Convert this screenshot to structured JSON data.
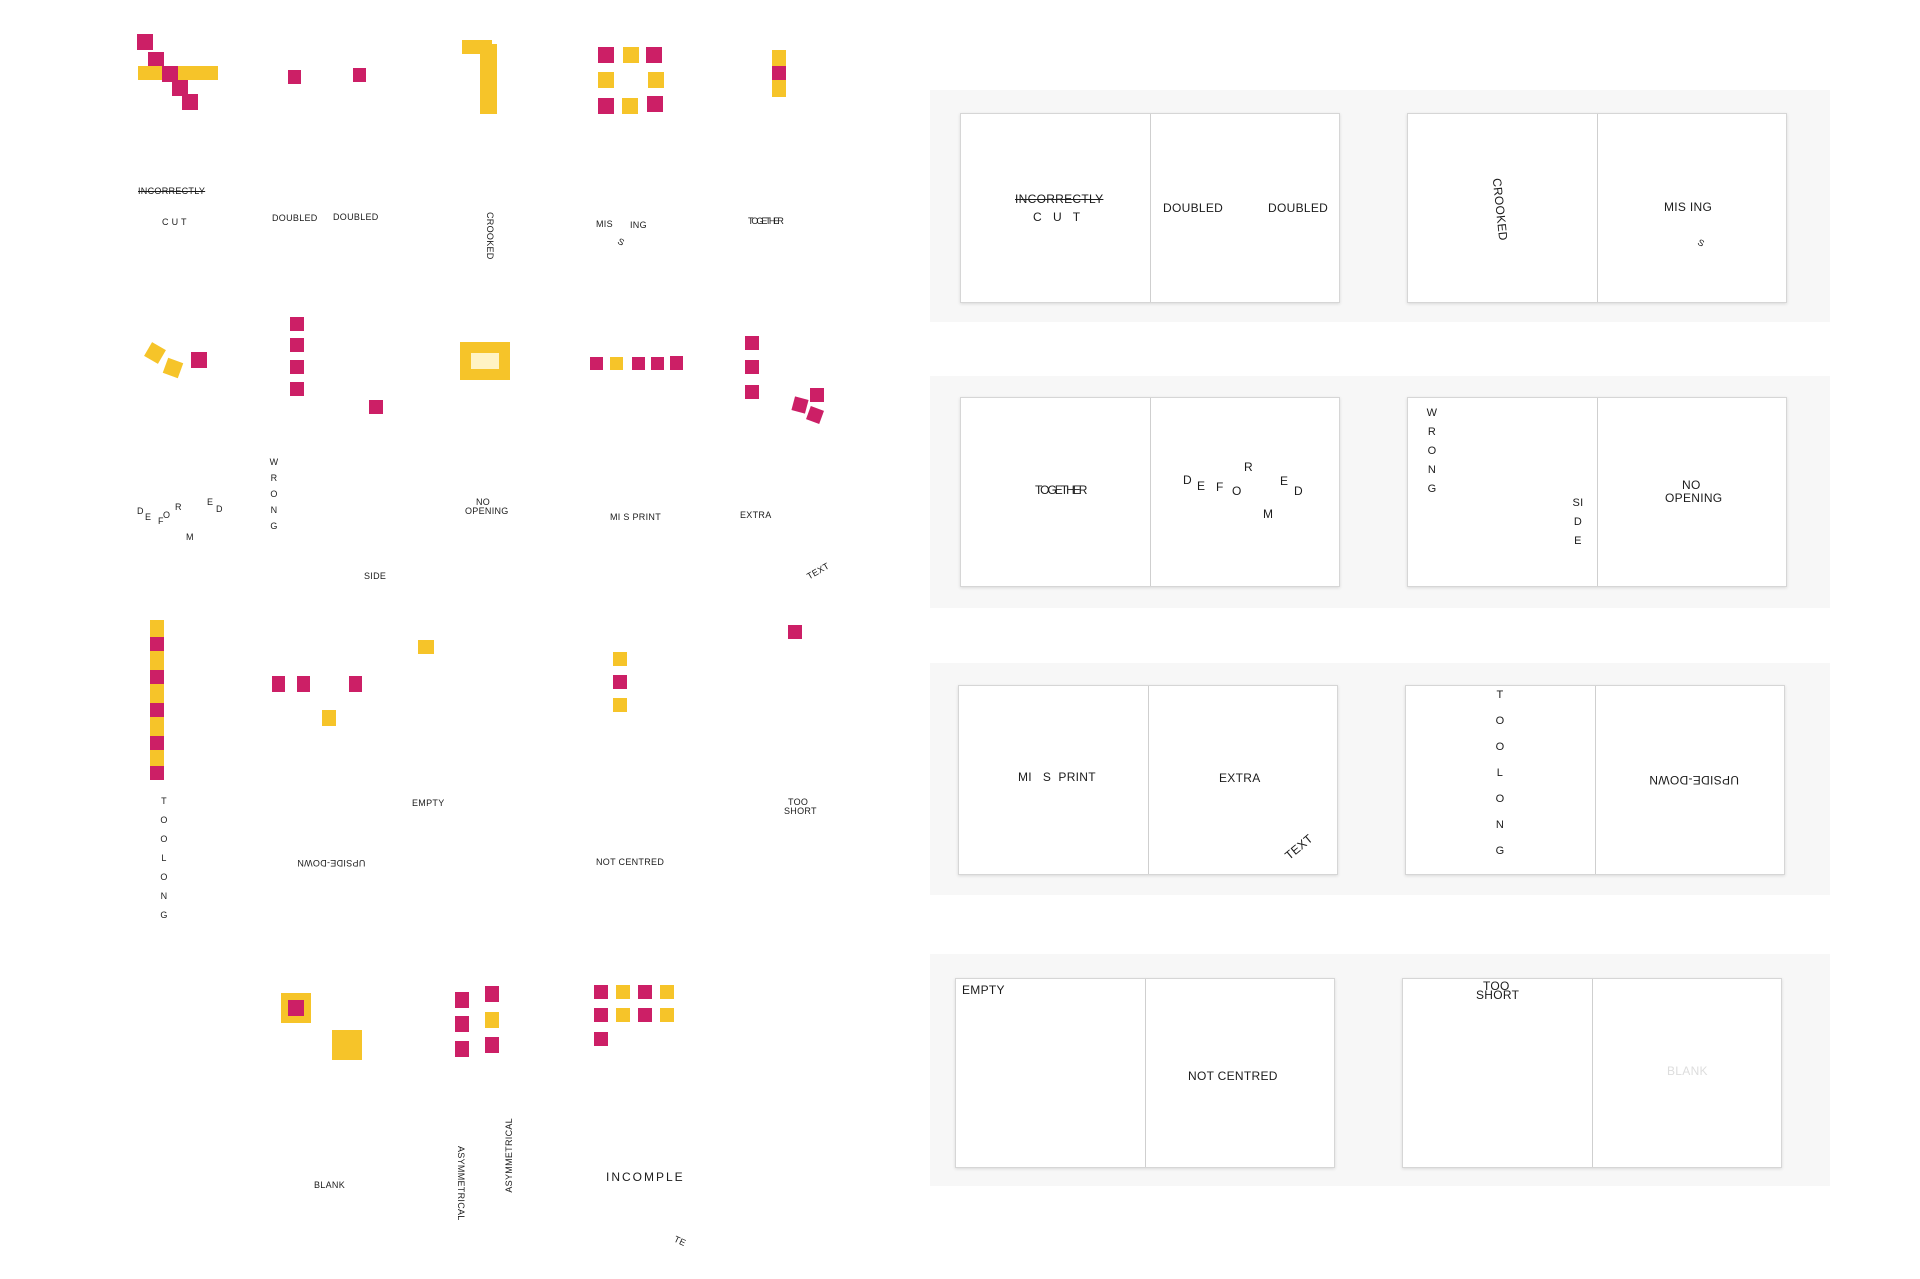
{
  "samples": {
    "incorrectly_cut": [
      "INCORRECTLY",
      "C U T"
    ],
    "doubled": "DOUBLED",
    "crooked": "CROOKED",
    "missing": [
      "MIS",
      "ING",
      "S"
    ],
    "together": "TOGETHER",
    "deformed": [
      "D",
      "E",
      "F",
      "O",
      "R",
      "M",
      "E",
      "D"
    ],
    "wrong_side": [
      "WRONG",
      "SIDE"
    ],
    "no_opening": [
      "NO",
      "OPENING"
    ],
    "misprint": "MI S PRINT",
    "extra": "EXTRA",
    "extra_text": "TEXT",
    "too_long": "TOOLONG",
    "upside_down": "UPSIDE-DOWN",
    "empty": "EMPTY",
    "not_centred": "NOT CENTRED",
    "too_short": [
      "TOO",
      "SHORT"
    ],
    "blank": "BLANK",
    "asymmetrical": "ASYMMETRICAL",
    "incomplete": "INCOMPLE",
    "incomplete_tail": "TE"
  },
  "cards": {
    "row1_left": {
      "a": [
        "INCORRECTLY",
        "C U T"
      ],
      "b": [
        "DOUBLED",
        "DOUBLED"
      ]
    },
    "row1_right": {
      "a": "CROOKED",
      "b": [
        "MIS  ING",
        "S"
      ]
    },
    "row2_left": {
      "a": "TOGETHER",
      "b": [
        "D",
        "E",
        "F",
        "O",
        "R",
        "E",
        "D",
        "M"
      ]
    },
    "row2_right": {
      "a_top": "WRONG",
      "a_bottom": "SIDE",
      "b": [
        "NO",
        "OPENING"
      ]
    },
    "row3_left": {
      "a": "MI   S  PRINT",
      "b": "EXTRA",
      "b_extra": "TEXT"
    },
    "row3_right": {
      "a": "TOOLONG",
      "b": "UPSIDE-DOWN"
    },
    "row4_left": {
      "a": "EMPTY",
      "b": "NOT CENTRED"
    },
    "row4_right": {
      "a": [
        "TOO",
        "SHORT"
      ],
      "b": "BLANK"
    }
  },
  "colors": {
    "magenta": "#cc1f66",
    "yellow": "#f6c429"
  }
}
